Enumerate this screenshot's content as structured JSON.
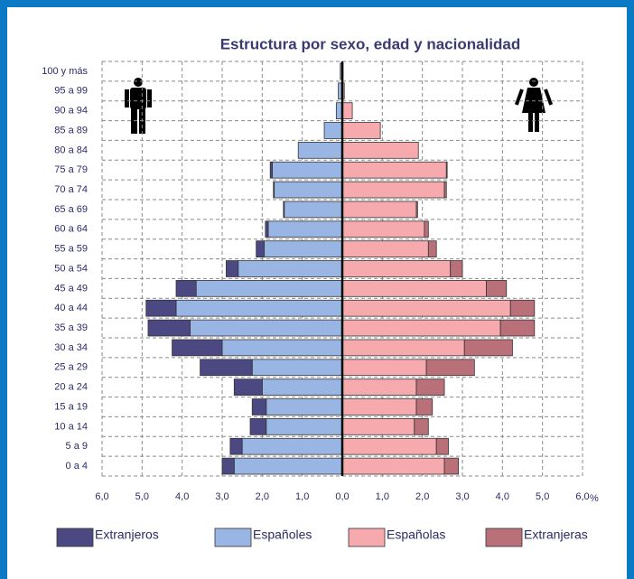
{
  "chart_data": {
    "type": "pyramid",
    "title": "Estructura por sexo, edad y nacionalidad",
    "categories": [
      "100 y más",
      "95 a 99",
      "90 a 94",
      "85 a 89",
      "80 a 84",
      "75 a 79",
      "70 a 74",
      "65 a 69",
      "60 a 64",
      "55 a 59",
      "50 a 54",
      "45 a 49",
      "40 a 44",
      "35 a 39",
      "30 a 34",
      "25 a 29",
      "20 a 24",
      "15 a 19",
      "10 a 14",
      "5 a 9",
      "0 a 4"
    ],
    "series": [
      {
        "name": "Extranjeros",
        "color": "#4b4882",
        "side": "left",
        "values": [
          0,
          0,
          0,
          0,
          0,
          0.05,
          0.02,
          0.02,
          0.07,
          0.2,
          0.3,
          0.5,
          0.75,
          1.05,
          1.25,
          1.3,
          0.7,
          0.35,
          0.4,
          0.3,
          0.3
        ]
      },
      {
        "name": "Españoles",
        "color": "#99b5e3",
        "side": "left",
        "values": [
          0.05,
          0.1,
          0.15,
          0.45,
          1.1,
          1.75,
          1.7,
          1.45,
          1.85,
          1.95,
          2.6,
          3.65,
          4.15,
          3.8,
          3.0,
          2.25,
          2.0,
          1.9,
          1.9,
          2.5,
          2.7
        ]
      },
      {
        "name": "Españolas",
        "color": "#f6aaae",
        "side": "right",
        "values": [
          0.02,
          0.05,
          0.25,
          0.95,
          1.9,
          2.6,
          2.55,
          1.85,
          2.05,
          2.15,
          2.7,
          3.6,
          4.2,
          3.95,
          3.05,
          2.1,
          1.85,
          1.85,
          1.8,
          2.35,
          2.55
        ]
      },
      {
        "name": "Extranjeras",
        "color": "#b97079",
        "side": "right",
        "values": [
          0,
          0,
          0,
          0,
          0,
          0.02,
          0.05,
          0.03,
          0.1,
          0.2,
          0.3,
          0.5,
          0.6,
          0.85,
          1.2,
          1.2,
          0.7,
          0.4,
          0.35,
          0.3,
          0.35
        ]
      }
    ],
    "xlim": [
      -6,
      6
    ],
    "xticks": [
      {
        "value": -6,
        "label": "6,0"
      },
      {
        "value": -5,
        "label": "5,0"
      },
      {
        "value": -4,
        "label": "4,0"
      },
      {
        "value": -3,
        "label": "3,0"
      },
      {
        "value": -2,
        "label": "2,0"
      },
      {
        "value": -1,
        "label": "1,0"
      },
      {
        "value": 0,
        "label": "0,0"
      },
      {
        "value": 1,
        "label": "1,0"
      },
      {
        "value": 2,
        "label": "2,0"
      },
      {
        "value": 3,
        "label": "3,0"
      },
      {
        "value": 4,
        "label": "4,0"
      },
      {
        "value": 5,
        "label": "5,0"
      },
      {
        "value": 6,
        "label": "6,0"
      }
    ],
    "x_unit": "%",
    "grid": true
  }
}
